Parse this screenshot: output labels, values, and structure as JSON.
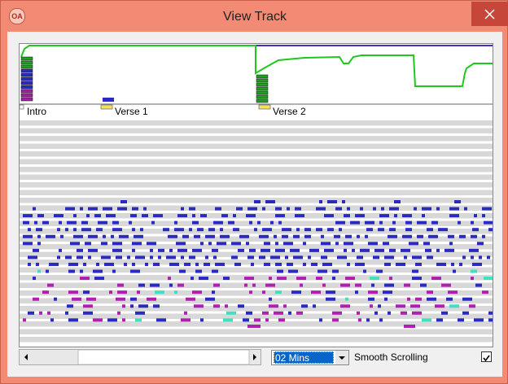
{
  "window": {
    "icon": "OA",
    "title": "View Track"
  },
  "markers": [
    {
      "label": "Intro"
    },
    {
      "label": "Verse 1"
    },
    {
      "label": "Verse 2"
    }
  ],
  "controls": {
    "duration": "02 Mins",
    "smooth_scrolling": "Smooth Scrolling"
  }
}
